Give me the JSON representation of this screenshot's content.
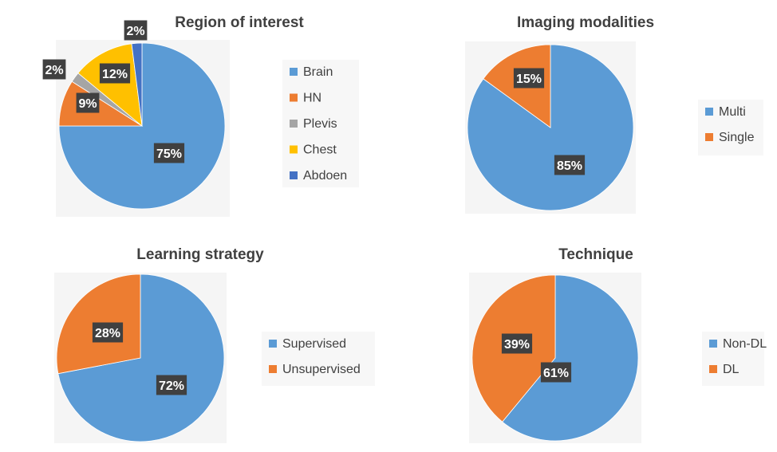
{
  "chart_data": [
    {
      "type": "pie",
      "title": "Region of interest",
      "categories": [
        "Brain",
        "HN",
        "Plevis",
        "Chest",
        "Abdoen"
      ],
      "values": [
        75,
        9,
        2,
        12,
        2
      ],
      "data_labels": [
        "75%",
        "9%",
        "2%",
        "12%",
        "2%"
      ],
      "colors": [
        "#5b9bd5",
        "#ed7d31",
        "#a5a5a5",
        "#ffc000",
        "#4472c4"
      ],
      "legend_position": "right"
    },
    {
      "type": "pie",
      "title": "Imaging modalities",
      "categories": [
        "Multi",
        "Single"
      ],
      "values": [
        85,
        15
      ],
      "data_labels": [
        "85%",
        "15%"
      ],
      "colors": [
        "#5b9bd5",
        "#ed7d31"
      ],
      "legend_position": "right"
    },
    {
      "type": "pie",
      "title": "Learning strategy",
      "categories": [
        "Supervised",
        "Unsupervised"
      ],
      "values": [
        72,
        28
      ],
      "data_labels": [
        "72%",
        "28%"
      ],
      "colors": [
        "#5b9bd5",
        "#ed7d31"
      ],
      "legend_position": "right"
    },
    {
      "type": "pie",
      "title": "Technique",
      "categories": [
        "Non-DL",
        "DL"
      ],
      "values": [
        61,
        39
      ],
      "data_labels": [
        "61%",
        "39%"
      ],
      "colors": [
        "#5b9bd5",
        "#ed7d31"
      ],
      "legend_position": "right"
    }
  ]
}
